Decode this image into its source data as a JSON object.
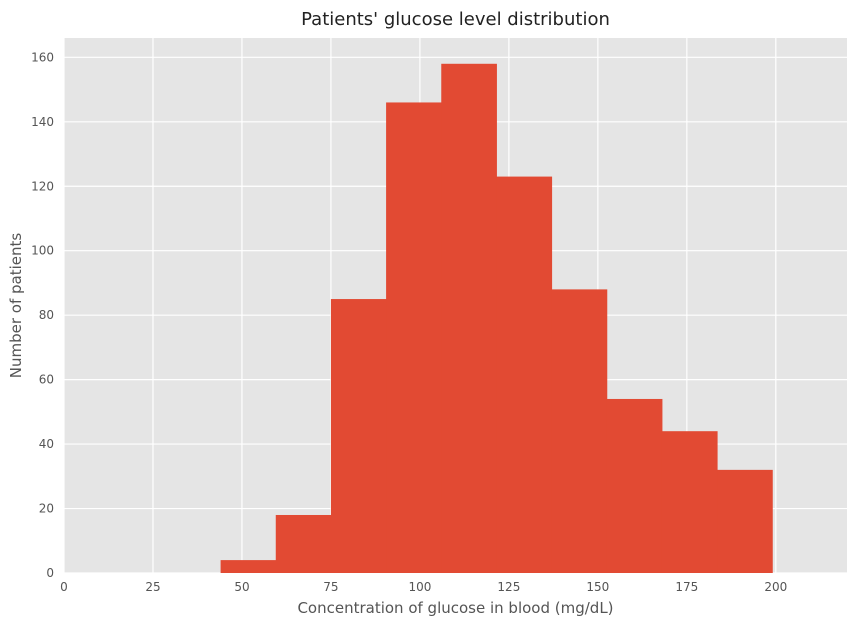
{
  "chart_data": {
    "type": "bar",
    "title": "Patients' glucose level distribution",
    "xlabel": "Concentration of glucose in blood (mg/dL)",
    "ylabel": "Number of patients",
    "xlim": [
      0,
      220
    ],
    "ylim": [
      0,
      166
    ],
    "xticks": [
      0,
      25,
      50,
      75,
      100,
      125,
      150,
      175,
      200
    ],
    "yticks": [
      0,
      20,
      40,
      60,
      80,
      100,
      120,
      140,
      160
    ],
    "bins": [
      {
        "x0": 44.0,
        "x1": 59.5,
        "count": 4
      },
      {
        "x0": 59.5,
        "x1": 75.0,
        "count": 18
      },
      {
        "x0": 75.0,
        "x1": 90.5,
        "count": 85
      },
      {
        "x0": 90.5,
        "x1": 106.0,
        "count": 146
      },
      {
        "x0": 106.0,
        "x1": 121.5,
        "count": 158
      },
      {
        "x0": 121.5,
        "x1": 137.0,
        "count": 123
      },
      {
        "x0": 137.0,
        "x1": 152.5,
        "count": 88
      },
      {
        "x0": 152.5,
        "x1": 168.0,
        "count": 54
      },
      {
        "x0": 168.0,
        "x1": 183.5,
        "count": 44
      },
      {
        "x0": 183.5,
        "x1": 199.0,
        "count": 32
      }
    ],
    "bar_color": "#E24A33",
    "background_color": "#E5E5E5",
    "grid": true,
    "grid_color": "#FFFFFF",
    "legend": false
  }
}
